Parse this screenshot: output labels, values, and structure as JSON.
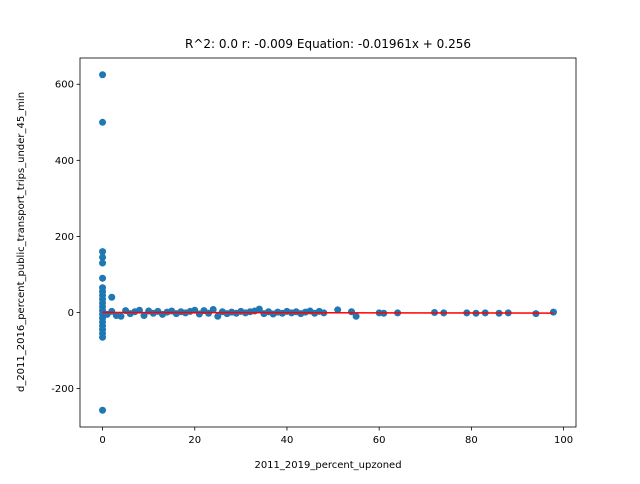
{
  "chart_data": {
    "type": "scatter",
    "title": "R^2: 0.0 r: -0.009 Equation: -0.01961x + 0.256",
    "x_label": "2011_2019_percent_upzoned",
    "y_label": "d_2011_2016_percent_public_transport_trips_under_45_min",
    "xlim": [
      -4.89,
      102.69
    ],
    "ylim": [
      -301,
      669
    ],
    "xticks": [
      0,
      20,
      40,
      60,
      80,
      100
    ],
    "yticks": [
      -200,
      0,
      200,
      400,
      600
    ],
    "series": [
      {
        "type": "scatter",
        "color": "#1f77b4",
        "x": [
          0,
          0,
          0,
          0,
          0,
          0,
          0,
          0,
          0,
          0,
          0,
          0,
          0,
          0,
          0,
          0,
          0,
          0,
          0,
          0,
          0,
          2,
          1,
          2,
          3,
          4,
          5,
          6,
          7,
          8,
          9,
          10,
          11,
          12,
          13,
          14,
          15,
          16,
          17,
          18,
          19,
          20,
          21,
          22,
          23,
          24,
          25,
          26,
          27,
          28,
          29,
          30,
          31,
          32,
          33,
          34,
          35,
          36,
          37,
          38,
          39,
          40,
          41,
          42,
          43,
          44,
          45,
          46,
          47,
          48,
          51,
          54,
          55,
          60,
          61,
          64,
          72,
          74,
          79,
          81,
          83,
          86,
          88,
          94,
          97.8
        ],
        "values": [
          625,
          500,
          160,
          145,
          130,
          90,
          65,
          55,
          45,
          35,
          25,
          15,
          5,
          -5,
          -15,
          -25,
          -35,
          -45,
          -55,
          -65,
          -257,
          40,
          -5,
          3,
          -8,
          -10,
          5,
          -3,
          2,
          6,
          -8,
          4,
          -2,
          3,
          -5,
          1,
          4,
          -3,
          2,
          -1,
          3,
          6,
          -4,
          5,
          -2,
          8,
          -10,
          2,
          -3,
          1,
          -2,
          3,
          -1,
          2,
          4,
          9,
          -3,
          2,
          -4,
          1,
          -2,
          3,
          -1,
          2,
          -3,
          1,
          4,
          -2,
          3,
          -1,
          7,
          2,
          -10,
          -1,
          -2,
          -1,
          0,
          -1,
          -1,
          -2,
          -1,
          -2,
          -1,
          -3,
          1
        ]
      },
      {
        "type": "line",
        "color": "#ff0000",
        "x": [
          0,
          97.8
        ],
        "values": [
          0.256,
          -1.662
        ]
      }
    ]
  }
}
